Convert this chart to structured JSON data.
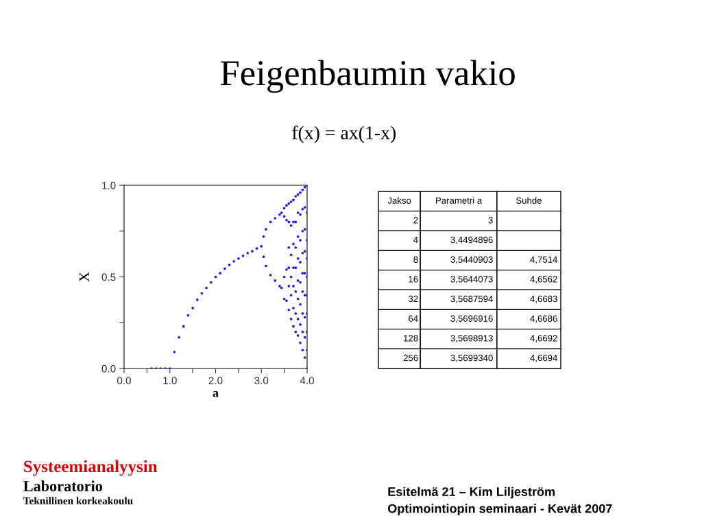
{
  "chart_data": [
    {
      "type": "scatter",
      "title": "Feigenbaumin vakio",
      "subtitle": "f(x) = ax(1-x)",
      "xlabel": "a",
      "ylabel": "X",
      "xlim": [
        0,
        4
      ],
      "ylim": [
        0,
        1
      ],
      "xticks": [
        {
          "value": 0,
          "label": "0.0"
        },
        {
          "value": 0.5,
          "label": null
        },
        {
          "value": 1,
          "label": "1.0"
        },
        {
          "value": 1.5,
          "label": null
        },
        {
          "value": 2,
          "label": "2.0"
        },
        {
          "value": 2.5,
          "label": null
        },
        {
          "value": 3,
          "label": "3.0"
        },
        {
          "value": 3.5,
          "label": null
        },
        {
          "value": 4,
          "label": "4.0"
        }
      ],
      "yticks": [
        {
          "value": 0,
          "label": "0.0"
        },
        {
          "value": 0.25,
          "label": null
        },
        {
          "value": 0.5,
          "label": "0.5"
        },
        {
          "value": 0.75,
          "label": null
        },
        {
          "value": 1,
          "label": "1.0"
        }
      ],
      "marker": "circle",
      "grid": false,
      "legend": false,
      "series": [
        {
          "color": "#1a1aee",
          "x": [
            0.6,
            0.7,
            0.8,
            0.9,
            1.0,
            1.1,
            1.2,
            1.3,
            1.4,
            1.5,
            1.6,
            1.7,
            1.8,
            1.9,
            2.0,
            2.1,
            2.2,
            2.3,
            2.4,
            2.5,
            2.6,
            2.7,
            2.8,
            2.9,
            3.0,
            3.05,
            3.1,
            3.2,
            3.3,
            3.4,
            3.44,
            3.05,
            3.1,
            3.2,
            3.3,
            3.4,
            3.44,
            3.5,
            3.5,
            3.5,
            3.5,
            3.55,
            3.55,
            3.55,
            3.55,
            3.6,
            3.6,
            3.6,
            3.6,
            3.6,
            3.6,
            3.65,
            3.65,
            3.65,
            3.65,
            3.65,
            3.65,
            3.7,
            3.7,
            3.7,
            3.7,
            3.7,
            3.7,
            3.7,
            3.75,
            3.75,
            3.75,
            3.75,
            3.75,
            3.75,
            3.75,
            3.8,
            3.8,
            3.8,
            3.8,
            3.8,
            3.8,
            3.8,
            3.8,
            3.85,
            3.85,
            3.85,
            3.85,
            3.85,
            3.85,
            3.85,
            3.85,
            3.9,
            3.9,
            3.9,
            3.9,
            3.9,
            3.9,
            3.9,
            3.9,
            3.9,
            3.95,
            3.95,
            3.95,
            3.95,
            3.95,
            3.95,
            3.95,
            3.95,
            3.95,
            4.0,
            4.0,
            4.0,
            4.0,
            4.0,
            4.0,
            4.0,
            4.0,
            4.0,
            4.0
          ],
          "values": [
            0,
            0,
            0,
            0,
            0,
            0.09,
            0.17,
            0.23,
            0.29,
            0.33,
            0.375,
            0.41,
            0.44,
            0.47,
            0.5,
            0.52,
            0.545,
            0.565,
            0.585,
            0.6,
            0.615,
            0.63,
            0.64,
            0.655,
            0.667,
            0.72,
            0.76,
            0.8,
            0.82,
            0.84,
            0.85,
            0.61,
            0.56,
            0.51,
            0.48,
            0.45,
            0.44,
            0.875,
            0.83,
            0.5,
            0.38,
            0.89,
            0.81,
            0.54,
            0.37,
            0.32,
            0.45,
            0.55,
            0.66,
            0.8,
            0.9,
            0.27,
            0.4,
            0.5,
            0.62,
            0.78,
            0.91,
            0.23,
            0.33,
            0.45,
            0.55,
            0.68,
            0.8,
            0.92,
            0.2,
            0.3,
            0.42,
            0.55,
            0.66,
            0.8,
            0.94,
            0.18,
            0.27,
            0.38,
            0.48,
            0.6,
            0.72,
            0.85,
            0.95,
            0.14,
            0.24,
            0.35,
            0.47,
            0.58,
            0.7,
            0.84,
            0.96,
            0.1,
            0.2,
            0.3,
            0.42,
            0.52,
            0.63,
            0.75,
            0.87,
            0.975,
            0.06,
            0.17,
            0.28,
            0.4,
            0.52,
            0.64,
            0.76,
            0.88,
            0.99,
            0.0,
            0.1,
            0.2,
            0.3,
            0.4,
            0.5,
            0.6,
            0.7,
            0.85,
            1.0
          ]
        }
      ],
      "annotations": [
        "Systeemianalyysin",
        "Laboratorio",
        "Teknillinen korkeakoulu",
        "Esitelmä 21 – Kim Liljeström",
        "Optimointiopin seminaari - Kevät 2007"
      ]
    },
    {
      "type": "other",
      "categories": [
        "Jakso",
        "Parametri a",
        "Suhde"
      ],
      "cell_labels": [
        [
          "2",
          "3",
          null
        ],
        [
          "4",
          "3,4494896",
          null
        ],
        [
          "8",
          "3,5440903",
          "4,7514"
        ],
        [
          "16",
          "3,5644073",
          "4,6562"
        ],
        [
          "32",
          "3,5687594",
          "4,6683"
        ],
        [
          "64",
          "3,5696916",
          "4,6686"
        ],
        [
          "128",
          "3,5698913",
          "4,6692"
        ],
        [
          "256",
          "3,5699340",
          "4,6694"
        ]
      ]
    }
  ]
}
